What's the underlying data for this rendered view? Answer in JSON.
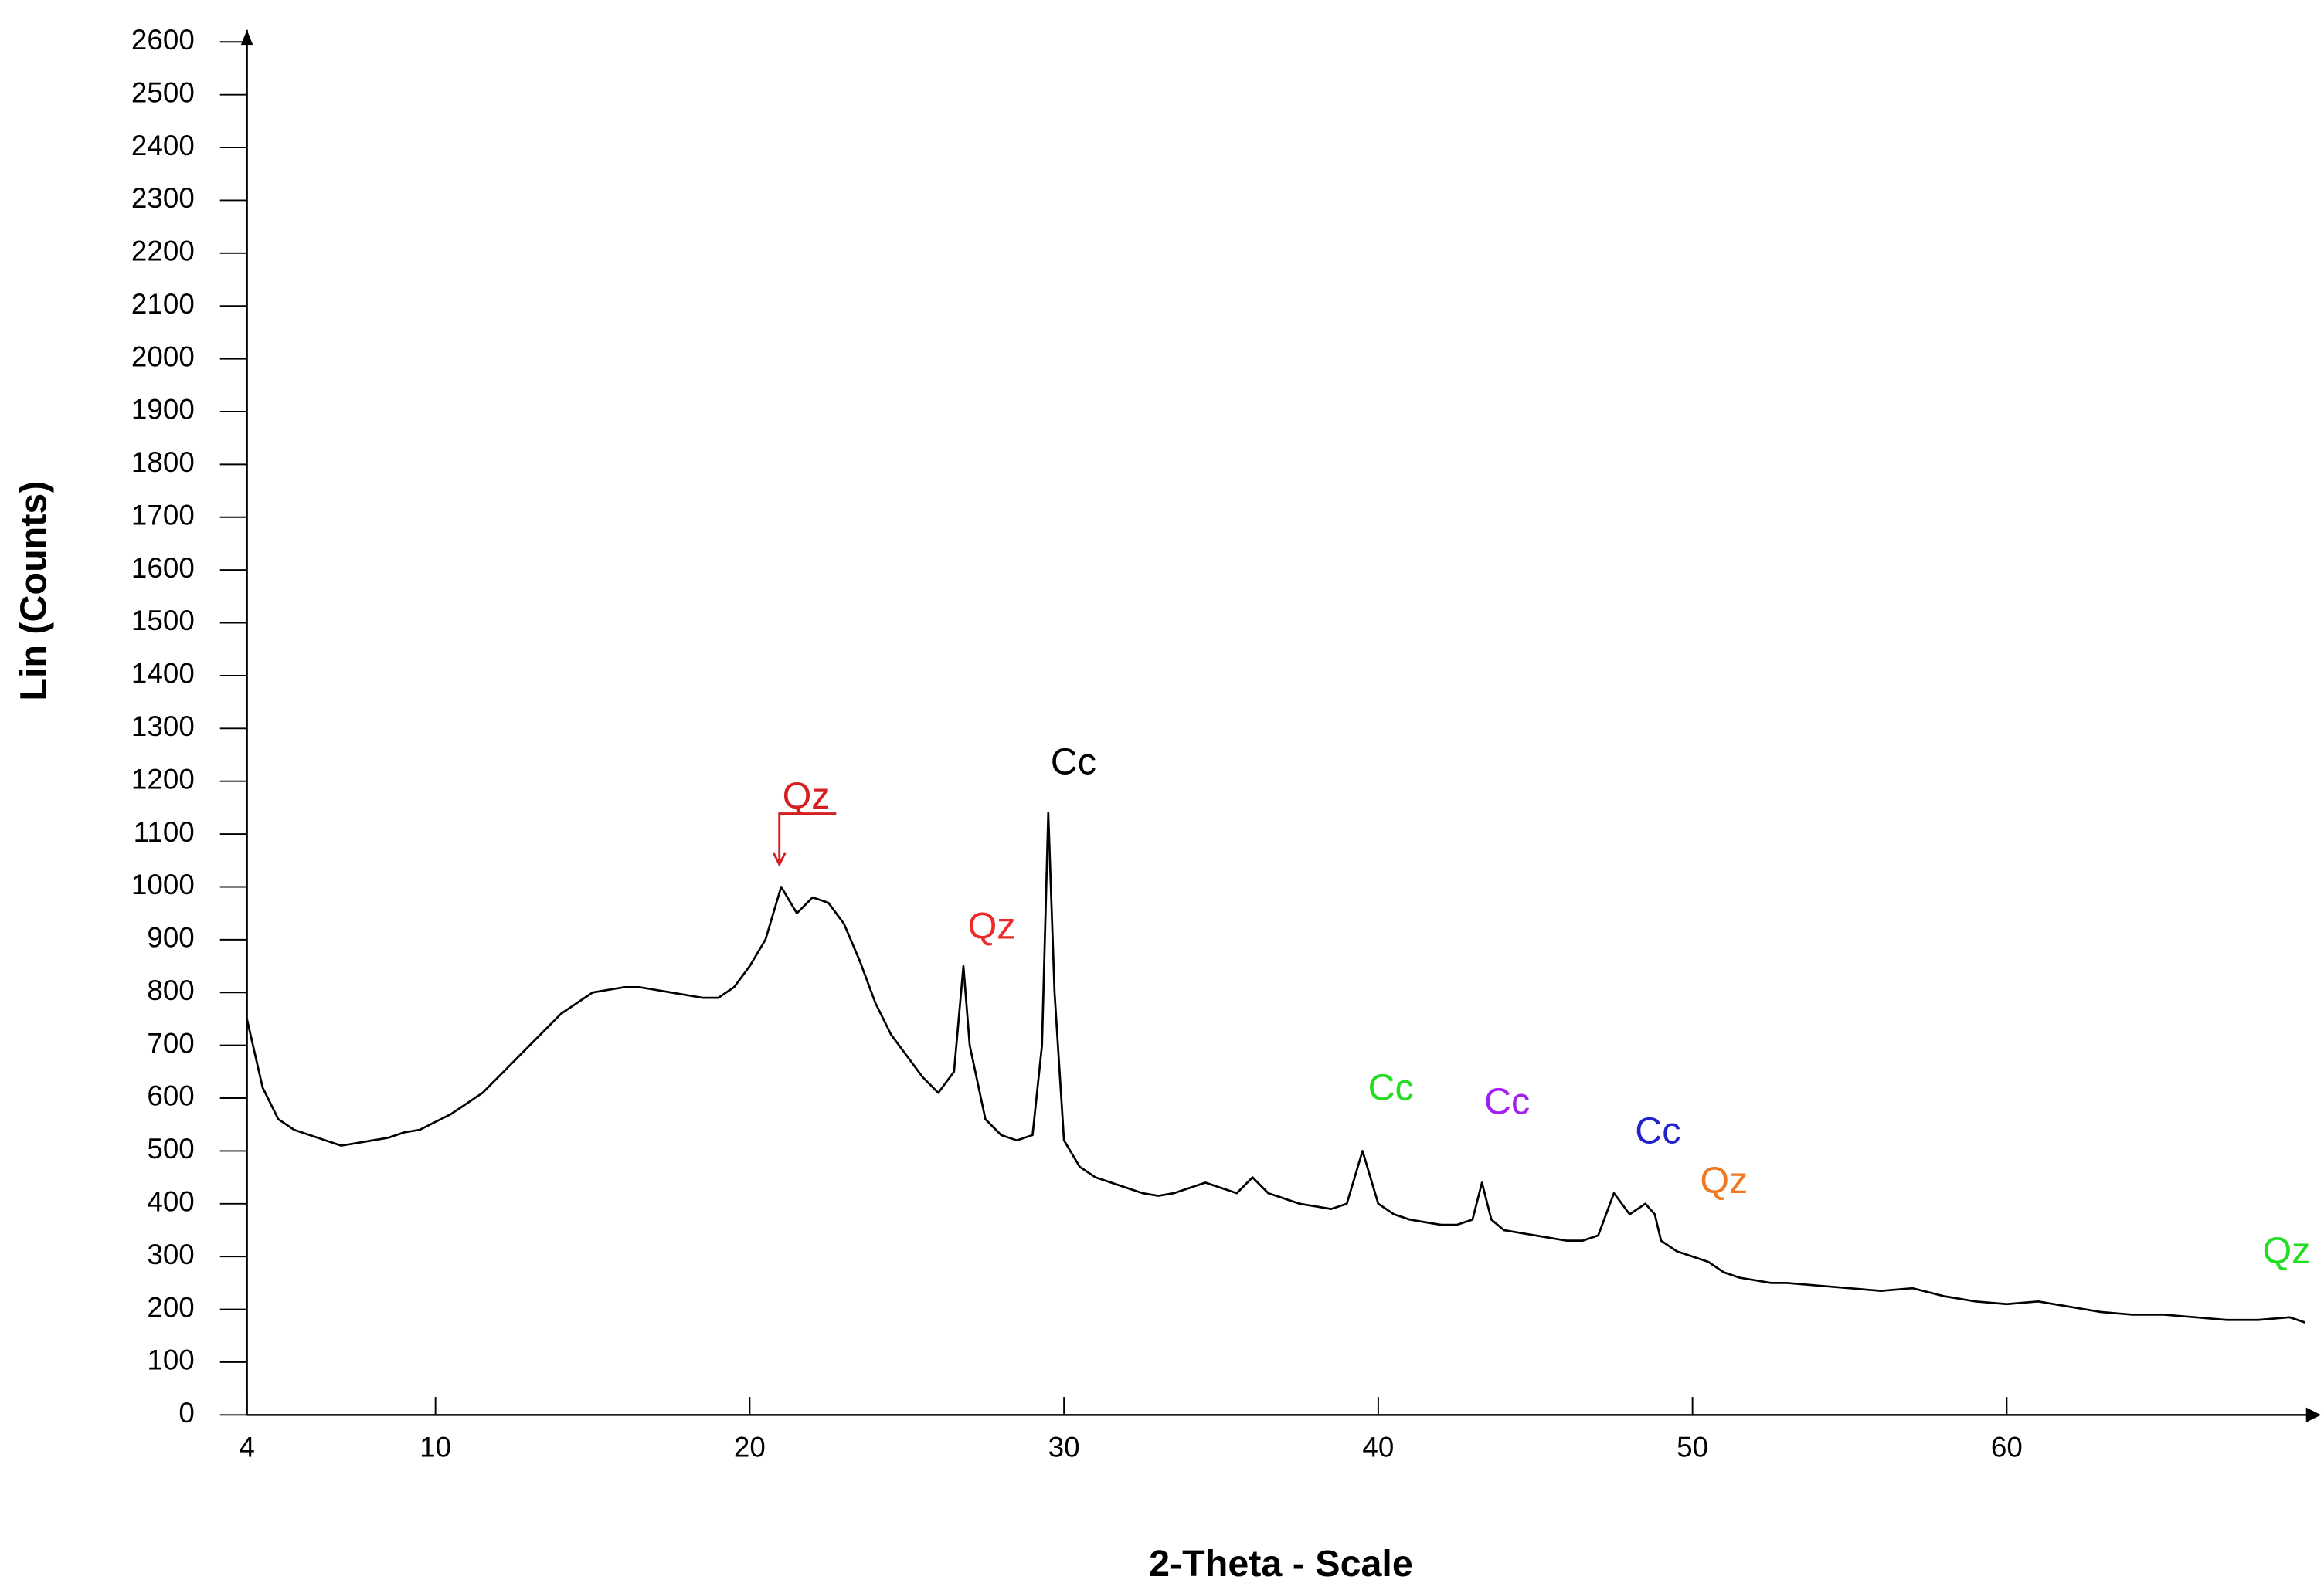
{
  "chart_data": {
    "type": "line",
    "xlabel": "2-Theta - Scale",
    "ylabel": "Lin (Counts)",
    "xlim": [
      4,
      70
    ],
    "xticks": [
      4,
      10,
      20,
      30,
      40,
      50,
      60
    ],
    "ylim": [
      0,
      2600
    ],
    "yticks": [
      0,
      100,
      200,
      300,
      400,
      500,
      600,
      700,
      800,
      900,
      1000,
      1100,
      1200,
      1300,
      1400,
      1500,
      1600,
      1700,
      1800,
      1900,
      2000,
      2100,
      2200,
      2300,
      2400,
      2500,
      2600
    ],
    "x": [
      4,
      4.5,
      5,
      5.5,
      6,
      6.5,
      7,
      7.5,
      8,
      8.5,
      9,
      9.5,
      10,
      10.5,
      11,
      11.5,
      12,
      12.5,
      13,
      13.5,
      14,
      14.5,
      15,
      15.5,
      16,
      16.5,
      17,
      17.5,
      18,
      18.5,
      19,
      19.5,
      20,
      20.5,
      21,
      21.5,
      22,
      22.5,
      23,
      23.5,
      24,
      24.5,
      25,
      25.5,
      26,
      26.5,
      26.8,
      27,
      27.5,
      28,
      28.5,
      29,
      29.3,
      29.5,
      29.7,
      30,
      30.5,
      31,
      31.5,
      32,
      32.5,
      33,
      33.5,
      34,
      34.5,
      35,
      35.5,
      36,
      36.5,
      37,
      37.5,
      38,
      38.5,
      39,
      39.5,
      40,
      40.5,
      41,
      41.5,
      42,
      42.5,
      43,
      43.3,
      43.6,
      44,
      44.5,
      45,
      45.5,
      46,
      46.5,
      47,
      47.5,
      48,
      48.5,
      48.8,
      49,
      49.5,
      50,
      50.5,
      51,
      51.5,
      52,
      52.5,
      53,
      54,
      55,
      56,
      57,
      58,
      59,
      60,
      61,
      62,
      63,
      64,
      65,
      66,
      67,
      68,
      69,
      69.5
    ],
    "series": [
      {
        "color": "#000000",
        "values": [
          750,
          620,
          560,
          540,
          530,
          520,
          510,
          515,
          520,
          525,
          535,
          540,
          555,
          570,
          590,
          610,
          640,
          670,
          700,
          730,
          760,
          780,
          800,
          805,
          810,
          810,
          805,
          800,
          795,
          790,
          790,
          810,
          850,
          900,
          1000,
          950,
          980,
          970,
          930,
          860,
          780,
          720,
          680,
          640,
          610,
          650,
          850,
          700,
          560,
          530,
          520,
          530,
          700,
          1140,
          800,
          520,
          470,
          450,
          440,
          430,
          420,
          415,
          420,
          430,
          440,
          430,
          420,
          450,
          420,
          410,
          400,
          395,
          390,
          400,
          500,
          400,
          380,
          370,
          365,
          360,
          360,
          370,
          440,
          370,
          350,
          345,
          340,
          335,
          330,
          330,
          340,
          420,
          380,
          400,
          380,
          330,
          310,
          300,
          290,
          270,
          260,
          255,
          250,
          250,
          245,
          240,
          235,
          240,
          225,
          215,
          210,
          215,
          205,
          195,
          190,
          190,
          185,
          180,
          180,
          185,
          175
        ]
      }
    ],
    "annotations": [
      {
        "text": "Qz",
        "x": 21.8,
        "y": 1167,
        "color": "#d42020",
        "arrow": true
      },
      {
        "text": "Qz",
        "x": 27.7,
        "y": 921,
        "color": "#ee2a2a"
      },
      {
        "text": "Cc",
        "x": 30.3,
        "y": 1232,
        "color": "#000000"
      },
      {
        "text": "Cc",
        "x": 40.4,
        "y": 615,
        "color": "#22dd22"
      },
      {
        "text": "Cc",
        "x": 44.1,
        "y": 589,
        "color": "#a020f0"
      },
      {
        "text": "Cc",
        "x": 48.9,
        "y": 533,
        "color": "#2222cc"
      },
      {
        "text": "Qz",
        "x": 51.0,
        "y": 439,
        "color": "#f07820"
      },
      {
        "text": "Qz",
        "x": 68.9,
        "y": 306,
        "color": "#22dd22"
      }
    ]
  }
}
